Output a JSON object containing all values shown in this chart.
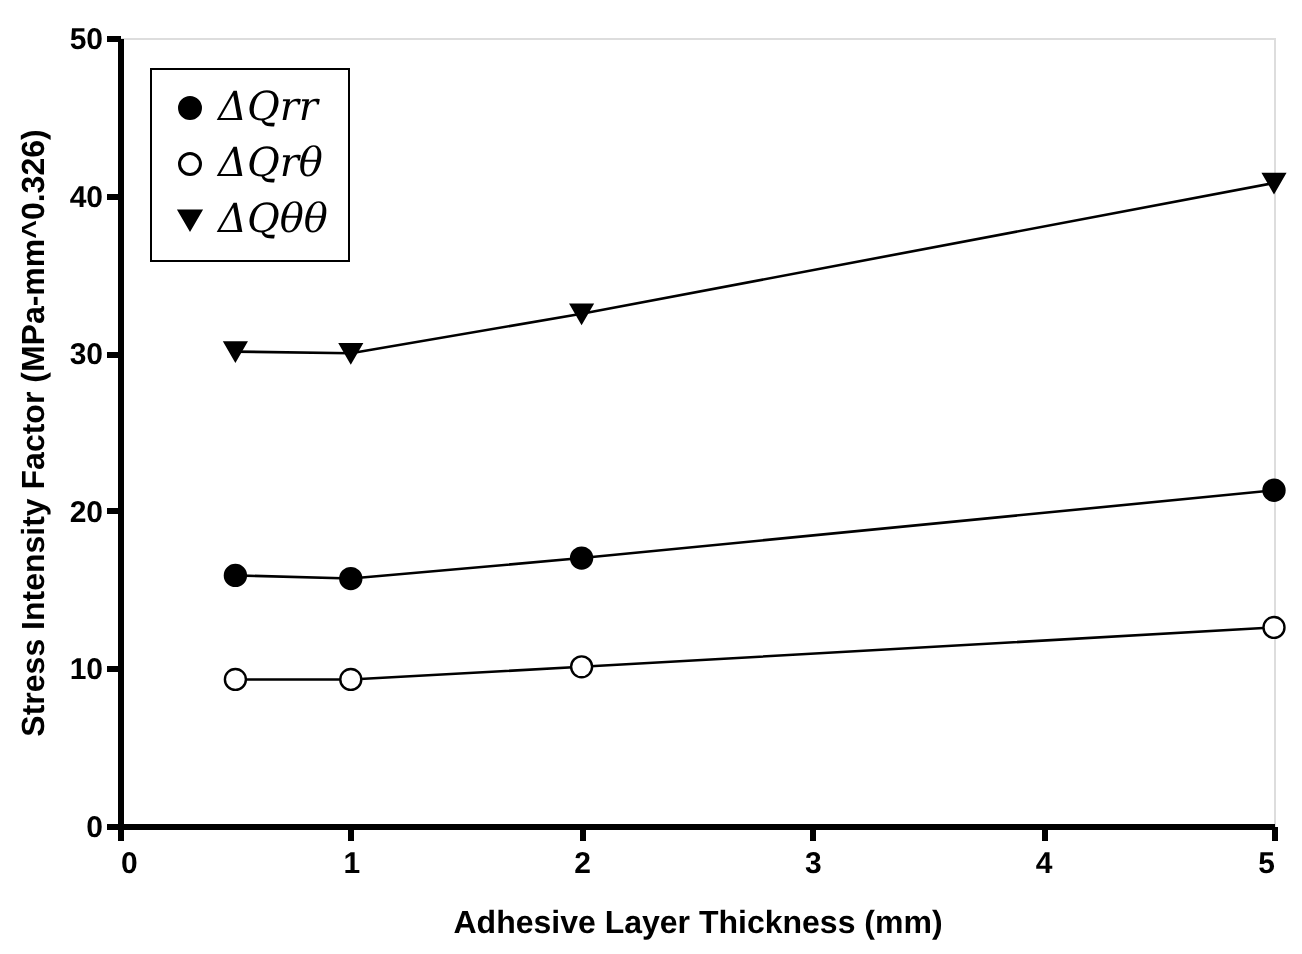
{
  "chart_data": {
    "type": "line",
    "xlabel": "Adhesive Layer Thickness (mm)",
    "ylabel": "Stress Intensity Factor (MPa-mm^0.326)",
    "x": [
      0.5,
      1,
      2,
      5
    ],
    "series": [
      {
        "name": "ΔQrr",
        "color": "#000000",
        "marker": "circle",
        "values": [
          15.9,
          15.7,
          17.0,
          21.3
        ]
      },
      {
        "name": "ΔQrθ",
        "color": "#ffffff",
        "marker": "circle",
        "values": [
          9.3,
          9.3,
          10.1,
          12.6
        ]
      },
      {
        "name": "ΔQθθ",
        "color": "#000000",
        "marker": "triangle",
        "values": [
          30.1,
          30.0,
          32.5,
          40.8
        ]
      }
    ],
    "xlim": [
      0,
      5
    ],
    "xticks": [
      0,
      1,
      2,
      3,
      4,
      5
    ],
    "ylim": [
      0,
      50
    ],
    "yticks": [
      0,
      10,
      20,
      30,
      40,
      50
    ],
    "grid": false,
    "legend": "top left",
    "line_style": "solid"
  }
}
